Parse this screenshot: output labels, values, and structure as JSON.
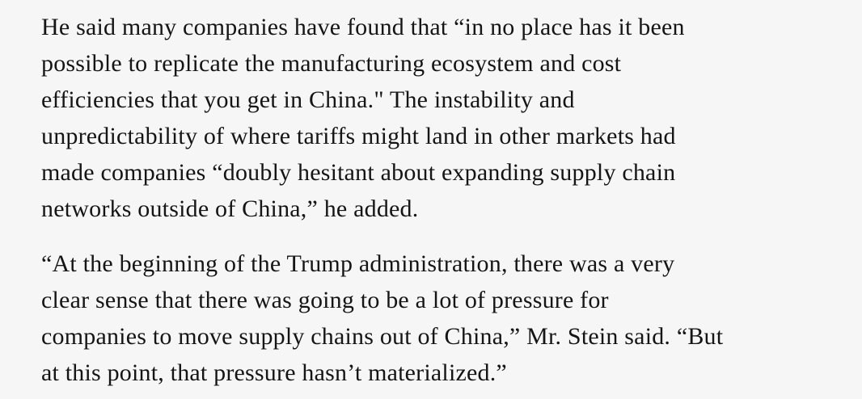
{
  "article": {
    "paragraphs": [
      {
        "lines": [
          "He said many companies have found that “in no place has it been",
          "possible to replicate the manufacturing ecosystem and cost",
          "efficiencies that you get in China.\" The instability and",
          "unpredictability of where tariffs might land in other markets had",
          "made companies “doubly hesitant about expanding supply chain",
          "networks outside of China,” he added."
        ]
      },
      {
        "lines": [
          "“At the beginning of the Trump administration, there was a very",
          "clear sense that there was going to be a lot of pressure for",
          "companies to move supply chains out of China,” Mr. Stein said. “But",
          "at this point, that pressure hasn’t materialized.”"
        ]
      }
    ]
  }
}
